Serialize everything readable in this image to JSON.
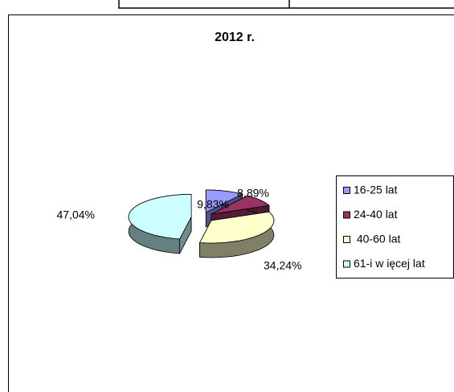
{
  "chart_data": {
    "type": "pie3d",
    "title": "2012 r.",
    "categories": [
      "16-25 lat",
      "24-40 lat",
      " 40-60 lat",
      "61-i w ięcej lat"
    ],
    "values": [
      9.83,
      8.89,
      34.24,
      47.04
    ],
    "value_labels": [
      "9,83%",
      "8,89%",
      "34,24%",
      "47,04%"
    ],
    "colors": [
      "#9999ff",
      "#993366",
      "#ffffcc",
      "#ccffff"
    ],
    "legend": "right"
  }
}
